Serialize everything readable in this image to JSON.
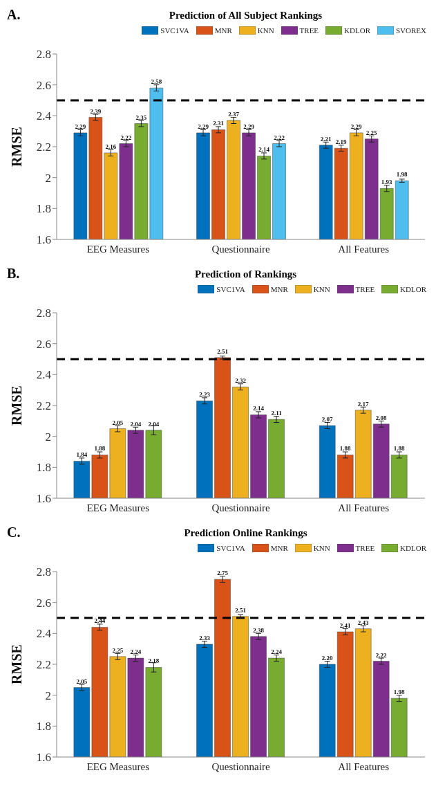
{
  "chart_data": [
    {
      "type": "bar",
      "title": "Prediction of All Subject Rankings",
      "ylabel": "RMSE",
      "annotations": [
        "A."
      ],
      "categories": [
        "EEG Measures",
        "Questionnaire",
        "All Features"
      ],
      "series": [
        {
          "name": "SVC1VA",
          "color": "#0072bd",
          "values": [
            2.29,
            2.29,
            2.21
          ],
          "errors": [
            0.02,
            0.02,
            0.02
          ]
        },
        {
          "name": "MNR",
          "color": "#d95319",
          "values": [
            2.39,
            2.31,
            2.19
          ],
          "errors": [
            0.02,
            0.02,
            0.02
          ]
        },
        {
          "name": "KNN",
          "color": "#edb120",
          "values": [
            2.16,
            2.37,
            2.29
          ],
          "errors": [
            0.02,
            0.02,
            0.02
          ]
        },
        {
          "name": "TREE",
          "color": "#7e2f8e",
          "values": [
            2.22,
            2.29,
            2.25
          ],
          "errors": [
            0.02,
            0.02,
            0.02
          ]
        },
        {
          "name": "KDLOR",
          "color": "#77ac30",
          "values": [
            2.35,
            2.14,
            1.93
          ],
          "errors": [
            0.02,
            0.02,
            0.02
          ]
        },
        {
          "name": "SVOREX",
          "color": "#4dbeee",
          "values": [
            2.58,
            2.22,
            1.98
          ],
          "errors": [
            0.02,
            0.02,
            0.01
          ]
        }
      ],
      "ylim": [
        1.6,
        2.8
      ],
      "yticks": [
        1.6,
        1.8,
        2,
        2.2,
        2.4,
        2.6,
        2.8
      ],
      "ref_lines": [
        {
          "axis": "y",
          "value": 2.5,
          "color": "#000000",
          "line_style": "dashed"
        }
      ],
      "data_labels": true,
      "legend": "top right",
      "grid": false
    },
    {
      "type": "bar",
      "title": "Prediction of Rankings",
      "ylabel": "RMSE",
      "annotations": [
        "B."
      ],
      "categories": [
        "EEG Measures",
        "Questionnaire",
        "All Features"
      ],
      "series": [
        {
          "name": "SVC1VA",
          "color": "#0072bd",
          "values": [
            1.84,
            2.23,
            2.07
          ],
          "errors": [
            0.02,
            0.02,
            0.02
          ]
        },
        {
          "name": "MNR",
          "color": "#d95319",
          "values": [
            1.88,
            2.51,
            1.88
          ],
          "errors": [
            0.02,
            0.01,
            0.02
          ]
        },
        {
          "name": "KNN",
          "color": "#edb120",
          "values": [
            2.05,
            2.32,
            2.17
          ],
          "errors": [
            0.02,
            0.02,
            0.02
          ]
        },
        {
          "name": "TREE",
          "color": "#7e2f8e",
          "values": [
            2.04,
            2.14,
            2.08
          ],
          "errors": [
            0.02,
            0.02,
            0.02
          ]
        },
        {
          "name": "KDLOR",
          "color": "#77ac30",
          "values": [
            2.04,
            2.11,
            1.88
          ],
          "errors": [
            0.03,
            0.02,
            0.02
          ]
        }
      ],
      "ylim": [
        1.6,
        2.8
      ],
      "yticks": [
        1.6,
        1.8,
        2,
        2.2,
        2.4,
        2.6,
        2.8
      ],
      "ref_lines": [
        {
          "axis": "y",
          "value": 2.5,
          "color": "#000000",
          "line_style": "dashed"
        }
      ],
      "data_labels": true,
      "legend": "top right",
      "grid": false
    },
    {
      "type": "bar",
      "title": "Prediction Online Rankings",
      "ylabel": "RMSE",
      "annotations": [
        "C."
      ],
      "categories": [
        "EEG Measures",
        "Questionnaire",
        "All Features"
      ],
      "series": [
        {
          "name": "SVC1VA",
          "color": "#0072bd",
          "values": [
            2.05,
            2.33,
            2.2
          ],
          "value_labels": [
            "2.05",
            "2.33",
            "2.20"
          ],
          "errors": [
            0.02,
            0.02,
            0.02
          ]
        },
        {
          "name": "MNR",
          "color": "#d95319",
          "values": [
            2.44,
            2.75,
            2.41
          ],
          "errors": [
            0.02,
            0.02,
            0.02
          ]
        },
        {
          "name": "KNN",
          "color": "#edb120",
          "values": [
            2.25,
            2.51,
            2.43
          ],
          "errors": [
            0.02,
            0.01,
            0.02
          ]
        },
        {
          "name": "TREE",
          "color": "#7e2f8e",
          "values": [
            2.24,
            2.38,
            2.22
          ],
          "errors": [
            0.02,
            0.02,
            0.02
          ]
        },
        {
          "name": "KDLOR",
          "color": "#77ac30",
          "values": [
            2.18,
            2.24,
            1.98
          ],
          "errors": [
            0.03,
            0.02,
            0.02
          ]
        }
      ],
      "ylim": [
        1.6,
        2.8
      ],
      "yticks": [
        1.6,
        1.8,
        2,
        2.2,
        2.4,
        2.6,
        2.8
      ],
      "ref_lines": [
        {
          "axis": "y",
          "value": 2.5,
          "color": "#000000",
          "line_style": "dashed"
        }
      ],
      "data_labels": true,
      "legend": "top right",
      "grid": false
    }
  ]
}
